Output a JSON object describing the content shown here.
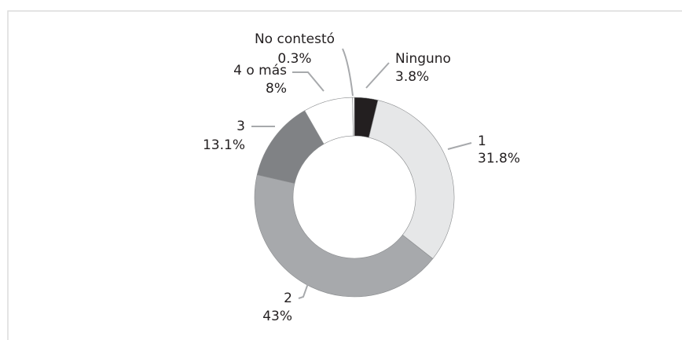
{
  "chart_data": {
    "type": "donut",
    "categories": [
      "Ninguno",
      "1",
      "2",
      "3",
      "4 o más",
      "No contestó"
    ],
    "values": [
      3.8,
      31.8,
      43,
      13.1,
      8,
      0.3
    ],
    "value_labels": [
      "3.8%",
      "31.8%",
      "43%",
      "13.1%",
      "8%",
      "0.3%"
    ],
    "colors": [
      "#231f20",
      "#e6e7e8",
      "#a7a9ac",
      "#808285",
      "#ffffff",
      "#ffffff"
    ]
  }
}
